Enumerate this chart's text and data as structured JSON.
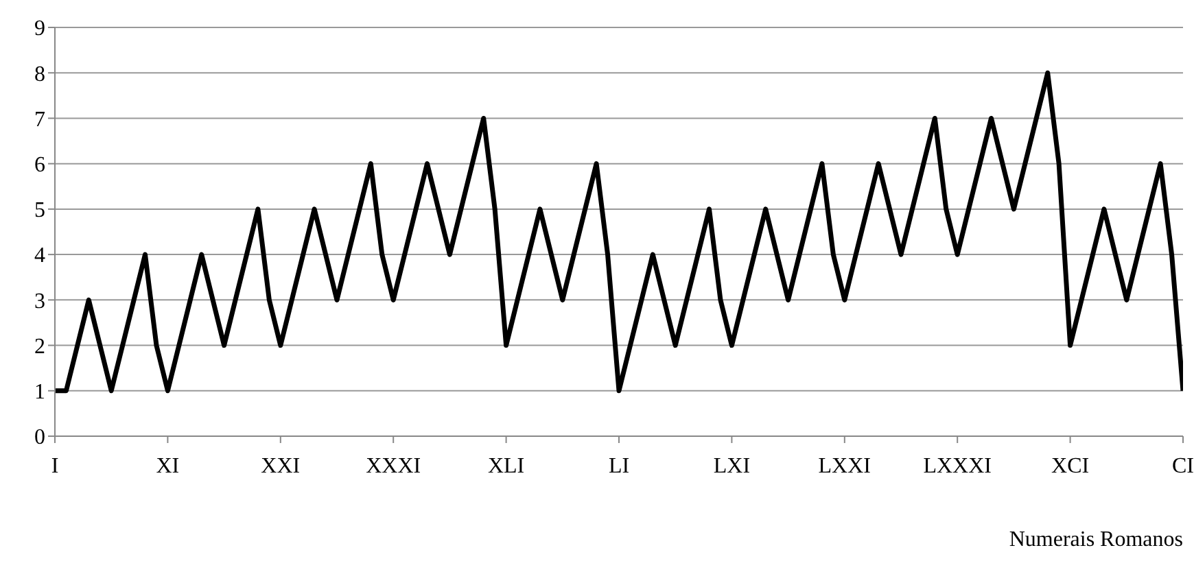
{
  "chart_data": {
    "type": "line",
    "xlabel": "Numerais Romanos",
    "categories": [
      "I",
      null,
      null,
      null,
      null,
      null,
      null,
      null,
      null,
      null,
      "XI",
      null,
      null,
      null,
      null,
      null,
      null,
      null,
      null,
      null,
      "XXI",
      null,
      null,
      null,
      null,
      null,
      null,
      null,
      null,
      null,
      "XXXI",
      null,
      null,
      null,
      null,
      null,
      null,
      null,
      null,
      null,
      "XLI",
      null,
      null,
      null,
      null,
      null,
      null,
      null,
      null,
      null,
      "LI",
      null,
      null,
      null,
      null,
      null,
      null,
      null,
      null,
      null,
      "LXI",
      null,
      null,
      null,
      null,
      null,
      null,
      null,
      null,
      null,
      "LXXI",
      null,
      null,
      null,
      null,
      null,
      null,
      null,
      null,
      null,
      "LXXXI",
      null,
      null,
      null,
      null,
      null,
      null,
      null,
      null,
      null,
      "XCI",
      null,
      null,
      null,
      null,
      null,
      null,
      null,
      null,
      null,
      "CI"
    ],
    "series": [
      {
        "color": "#000000",
        "values": [
          1,
          1,
          2,
          3,
          2,
          1,
          2,
          3,
          4,
          2,
          1,
          2,
          3,
          4,
          3,
          2,
          3,
          4,
          5,
          3,
          2,
          3,
          4,
          5,
          4,
          3,
          4,
          5,
          6,
          4,
          3,
          4,
          5,
          6,
          5,
          4,
          5,
          6,
          7,
          5,
          2,
          3,
          4,
          5,
          4,
          3,
          4,
          5,
          6,
          4,
          1,
          2,
          3,
          4,
          3,
          2,
          3,
          4,
          5,
          3,
          2,
          3,
          4,
          5,
          4,
          3,
          4,
          5,
          6,
          4,
          3,
          4,
          5,
          6,
          5,
          4,
          5,
          6,
          7,
          5,
          4,
          5,
          6,
          7,
          6,
          5,
          6,
          7,
          8,
          6,
          2,
          3,
          4,
          5,
          4,
          3,
          4,
          5,
          6,
          4,
          1
        ]
      }
    ],
    "ylim": [
      0,
      9
    ],
    "yticks": [
      0,
      1,
      2,
      3,
      4,
      5,
      6,
      7,
      8,
      9
    ],
    "grid": "y",
    "marker": "none",
    "line_style": "solid",
    "legend": false
  }
}
